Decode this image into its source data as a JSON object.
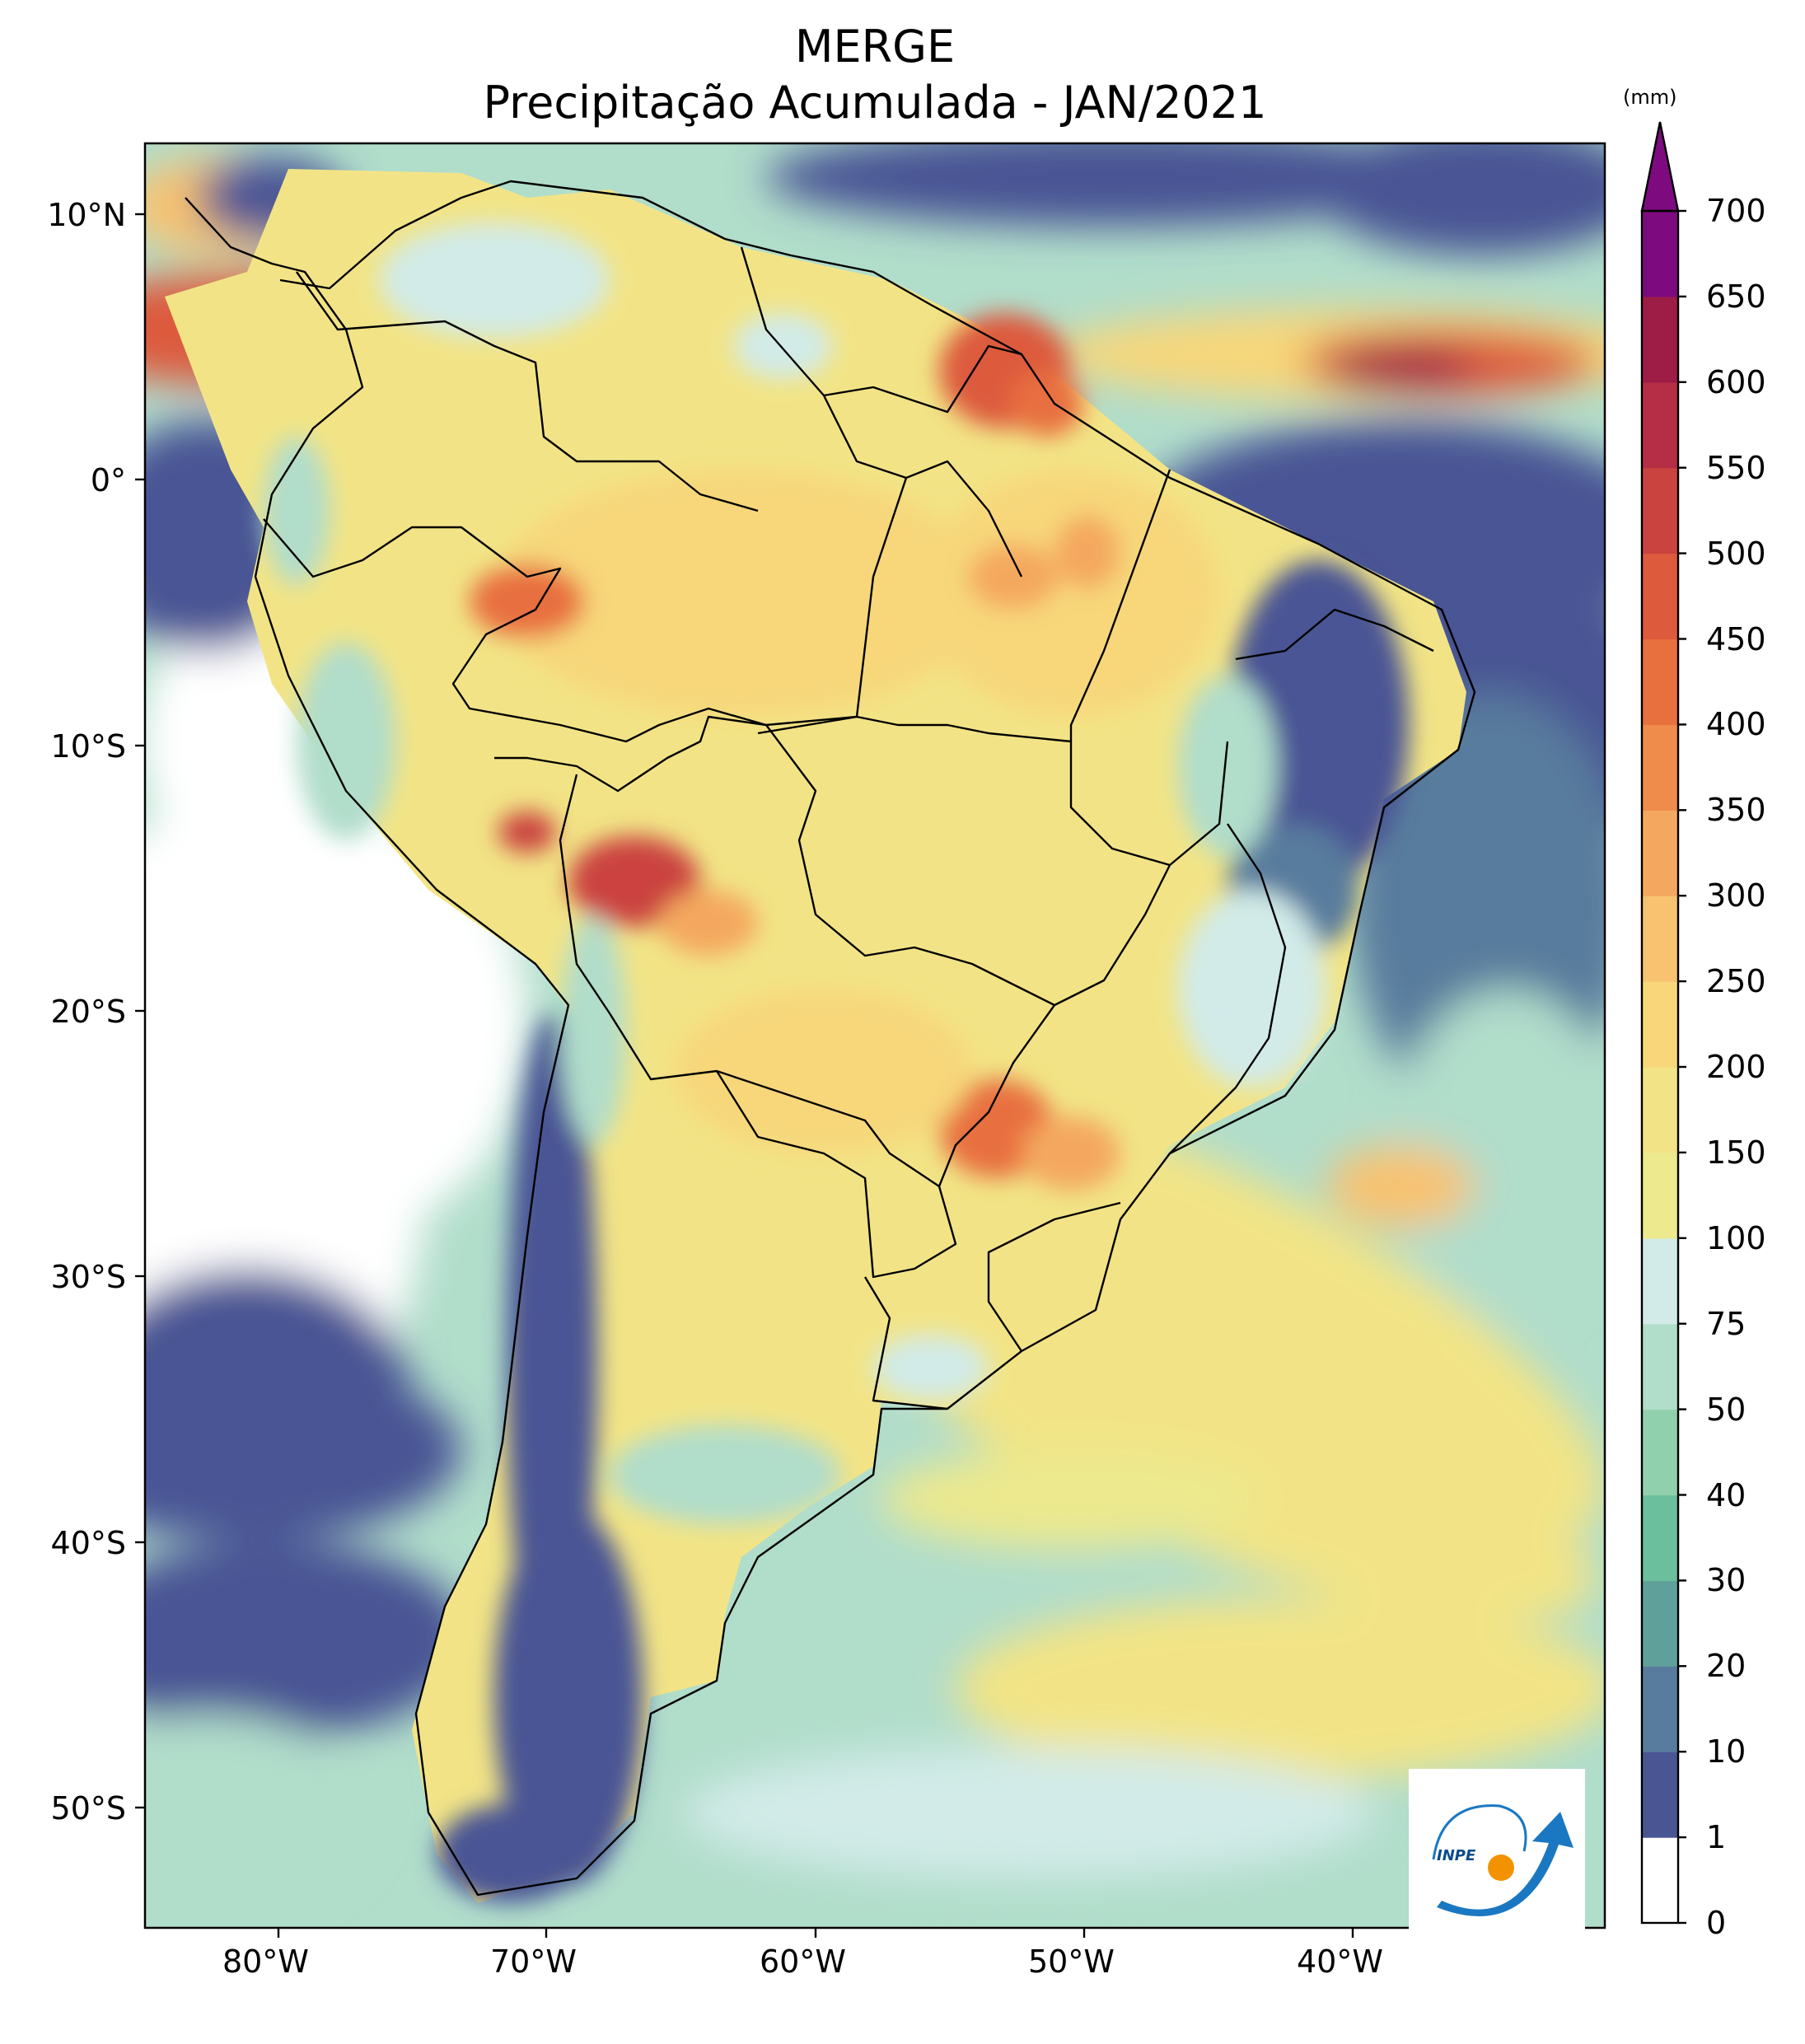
{
  "title": "MERGE",
  "subtitle": "Precipitação Acumulada - JAN/2021",
  "units": "(mm)",
  "lon_ticks": [
    "80°W",
    "70°W",
    "60°W",
    "50°W",
    "40°W"
  ],
  "lat_ticks": [
    "10°N",
    "0°",
    "10°S",
    "20°S",
    "30°S",
    "40°S",
    "50°S"
  ],
  "colorbar": {
    "levels": [
      "0",
      "1",
      "10",
      "20",
      "30",
      "40",
      "50",
      "75",
      "100",
      "150",
      "200",
      "250",
      "300",
      "350",
      "400",
      "450",
      "500",
      "550",
      "600",
      "650",
      "700"
    ],
    "colors": [
      "#ffffff",
      "#4a5594",
      "#587c9d",
      "#60a09a",
      "#6cbf9c",
      "#91d0ad",
      "#b1ddcb",
      "#d2ebe8",
      "#ece98e",
      "#f2e486",
      "#f7d77a",
      "#f8c271",
      "#f4a85f",
      "#ef8b4b",
      "#e8703f",
      "#dd5a3d",
      "#cb433f",
      "#b52e45",
      "#9d1d47",
      "#7e0a7f"
    ],
    "extend": "max"
  },
  "map": {
    "extent": {
      "lon": [
        -85,
        -30
      ],
      "lat": [
        -56,
        13
      ]
    },
    "ocean_palette": [
      "#4a5594",
      "#b1ddcb",
      "#d2ebe8",
      "#f2e486"
    ]
  },
  "logo": {
    "text": "INPE",
    "colors": {
      "blue": "#1a78c2",
      "orange": "#f39200"
    }
  }
}
